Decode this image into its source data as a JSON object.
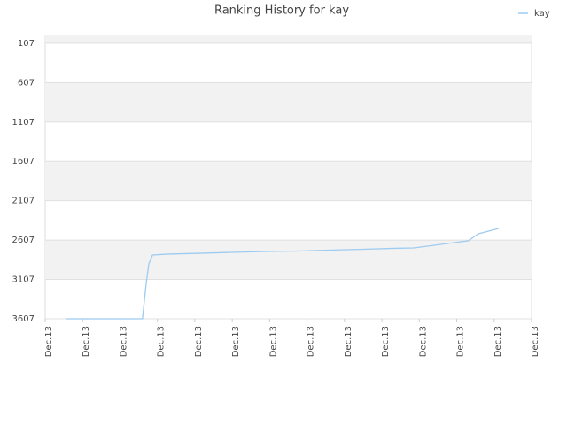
{
  "chart_data": {
    "type": "line",
    "title": "Ranking History for kay",
    "x": [
      0.57,
      2.6,
      2.7,
      2.77,
      2.87,
      3.29,
      4.12,
      5.0,
      5.9,
      6.77,
      7.6,
      8.5,
      9.33,
      9.85,
      10.4,
      11.3,
      11.41,
      11.58,
      12.12
    ],
    "series": [
      {
        "name": "kay",
        "color": "#9ecbf0",
        "values": [
          3607,
          3607,
          3157,
          2910,
          2797,
          2785,
          2775,
          2763,
          2752,
          2746,
          2735,
          2724,
          2712,
          2707,
          2673,
          2617,
          2583,
          2527,
          2460
        ]
      }
    ],
    "xlim": [
      0,
      13
    ],
    "xticks": [
      {
        "value": 0,
        "label": "Dec.13"
      },
      {
        "value": 1,
        "label": "Dec.13"
      },
      {
        "value": 2,
        "label": "Dec.13"
      },
      {
        "value": 3,
        "label": "Dec.13"
      },
      {
        "value": 4,
        "label": "Dec.13"
      },
      {
        "value": 5,
        "label": "Dec.13"
      },
      {
        "value": 6,
        "label": "Dec.13"
      },
      {
        "value": 7,
        "label": "Dec.13"
      },
      {
        "value": 8,
        "label": "Dec.13"
      },
      {
        "value": 9,
        "label": "Dec.13"
      },
      {
        "value": 10,
        "label": "Dec.13"
      },
      {
        "value": 11,
        "label": "Dec.13"
      },
      {
        "value": 12,
        "label": "Dec.13"
      },
      {
        "value": 13,
        "label": "Dec.13"
      }
    ],
    "ylim": [
      3607,
      7
    ],
    "yticks": [
      107,
      607,
      1107,
      1607,
      2107,
      2607,
      3107,
      3607
    ],
    "grid": true,
    "legend": "top-right"
  }
}
